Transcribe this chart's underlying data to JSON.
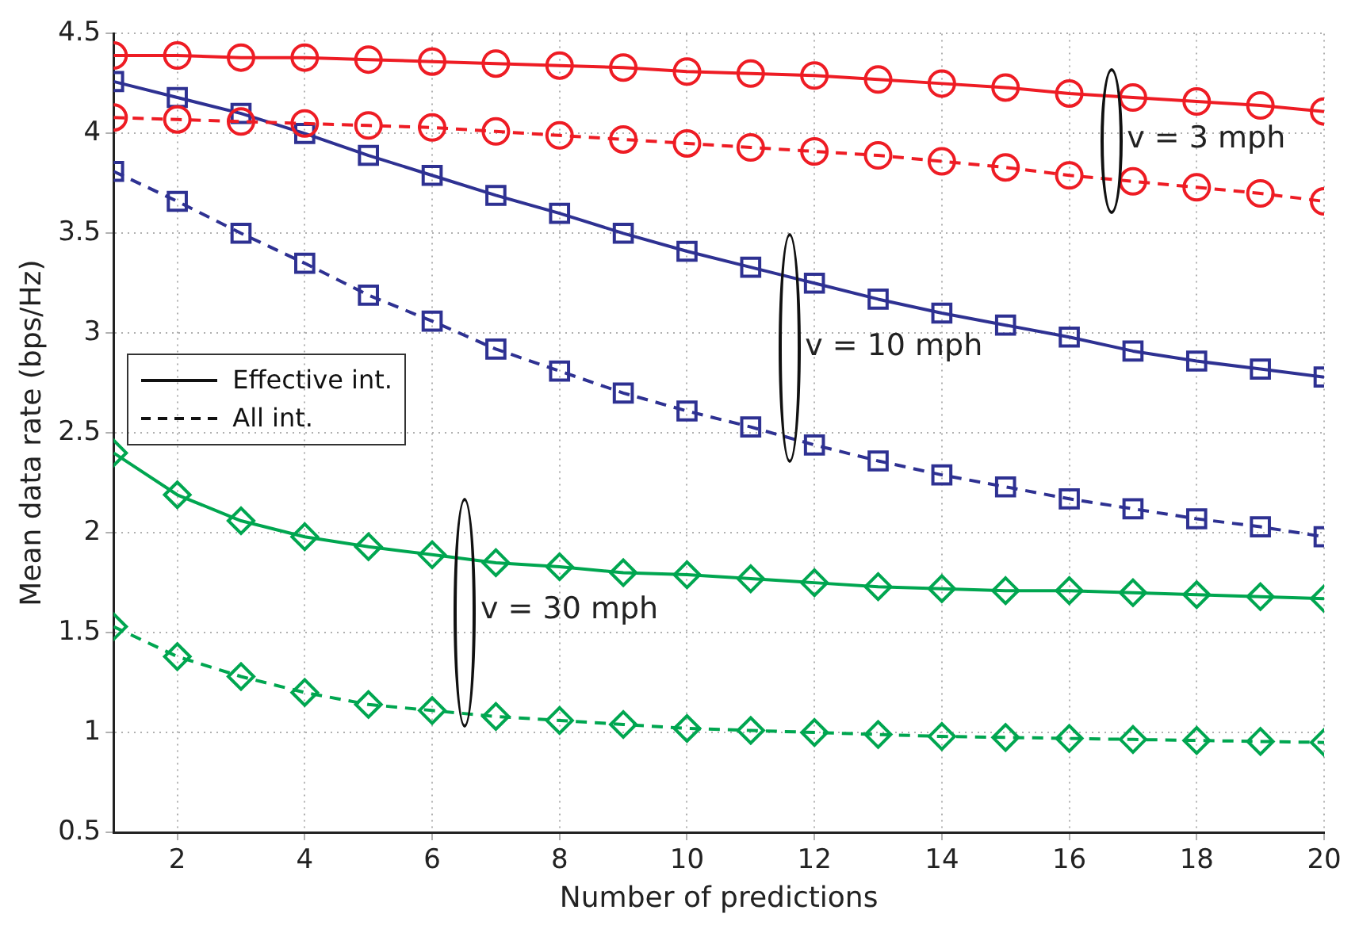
{
  "chart_data": {
    "type": "line",
    "xlabel": "Number of predictions",
    "ylabel": "Mean data rate (bps/Hz)",
    "x": [
      1,
      2,
      3,
      4,
      5,
      6,
      7,
      8,
      9,
      10,
      11,
      12,
      13,
      14,
      15,
      16,
      17,
      18,
      19,
      20
    ],
    "xlim": [
      1,
      20
    ],
    "xticks": [
      2,
      4,
      6,
      8,
      10,
      12,
      14,
      16,
      18,
      20
    ],
    "ylim": [
      0.5,
      4.5
    ],
    "yticks": [
      0.5,
      1,
      1.5,
      2,
      2.5,
      3,
      3.5,
      4,
      4.5
    ],
    "grid": true,
    "series": [
      {
        "color": "#ee1c24",
        "marker": "circle",
        "line_style": "solid",
        "values": [
          4.39,
          4.39,
          4.38,
          4.38,
          4.37,
          4.36,
          4.35,
          4.34,
          4.33,
          4.31,
          4.3,
          4.29,
          4.27,
          4.25,
          4.23,
          4.2,
          4.18,
          4.16,
          4.14,
          4.11
        ]
      },
      {
        "color": "#ee1c24",
        "marker": "circle",
        "line_style": "dashed",
        "values": [
          4.08,
          4.07,
          4.06,
          4.05,
          4.04,
          4.03,
          4.01,
          3.99,
          3.97,
          3.95,
          3.93,
          3.91,
          3.89,
          3.86,
          3.83,
          3.79,
          3.76,
          3.73,
          3.7,
          3.66
        ]
      },
      {
        "color": "#2e3192",
        "marker": "square",
        "line_style": "solid",
        "values": [
          4.26,
          4.18,
          4.1,
          4.0,
          3.89,
          3.79,
          3.69,
          3.6,
          3.5,
          3.41,
          3.33,
          3.25,
          3.17,
          3.1,
          3.04,
          2.98,
          2.91,
          2.86,
          2.82,
          2.78
        ]
      },
      {
        "color": "#2e3192",
        "marker": "square",
        "line_style": "dashed",
        "values": [
          3.81,
          3.66,
          3.5,
          3.35,
          3.19,
          3.06,
          2.92,
          2.81,
          2.7,
          2.61,
          2.53,
          2.44,
          2.36,
          2.29,
          2.23,
          2.17,
          2.12,
          2.07,
          2.03,
          1.98
        ]
      },
      {
        "color": "#00a650",
        "marker": "diamond",
        "line_style": "solid",
        "values": [
          2.4,
          2.19,
          2.06,
          1.98,
          1.93,
          1.89,
          1.85,
          1.83,
          1.8,
          1.79,
          1.77,
          1.75,
          1.73,
          1.72,
          1.71,
          1.71,
          1.7,
          1.69,
          1.68,
          1.67
        ]
      },
      {
        "color": "#00a650",
        "marker": "diamond",
        "line_style": "dashed",
        "values": [
          1.53,
          1.38,
          1.28,
          1.2,
          1.14,
          1.11,
          1.08,
          1.06,
          1.04,
          1.02,
          1.01,
          1.0,
          0.99,
          0.98,
          0.975,
          0.97,
          0.965,
          0.96,
          0.955,
          0.95
        ]
      }
    ],
    "annotations": [
      "Effective int.",
      "All int.",
      "v = 3 mph",
      "v = 10 mph",
      "v = 30 mph"
    ]
  }
}
